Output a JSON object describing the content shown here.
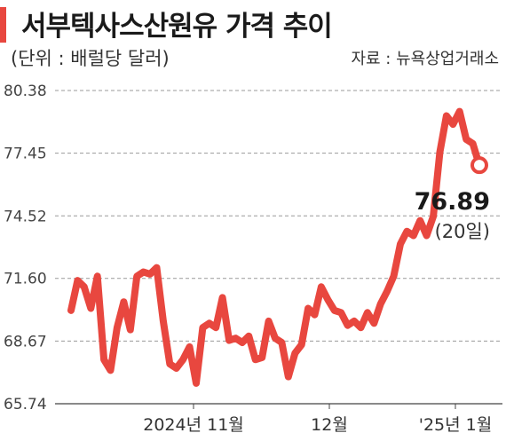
{
  "header": {
    "title": "서부텍사스산원유 가격 추이",
    "subtitle": "(단위 : 배럴당 달러)",
    "source": "자료 : 뉴욕상업거래소"
  },
  "colors": {
    "line": "#e8473f",
    "accent_bar": "#e8473f",
    "grid": "#999999",
    "axis": "#444444"
  },
  "chart_data": {
    "type": "line",
    "title": "서부텍사스산원유 가격 추이",
    "ylabel": "(단위 : 배럴당 달러)",
    "ylim": [
      65.74,
      80.38
    ],
    "y_ticks": [
      "80.38",
      "77.45",
      "74.52",
      "71.60",
      "68.67",
      "65.74"
    ],
    "x_tick_labels": [
      "2024년 11월",
      "12월",
      "'25년 1월"
    ],
    "grid": "horizontal dashed",
    "last_value_label": "76.89",
    "last_value_note": "(20일)",
    "series": [
      {
        "values": [
          70.1,
          71.5,
          71.2,
          70.2,
          71.7,
          67.8,
          67.3,
          69.3,
          70.5,
          69.2,
          71.7,
          71.9,
          71.8,
          72.1,
          69.6,
          67.6,
          67.4,
          67.8,
          68.4,
          66.7,
          69.3,
          69.5,
          69.3,
          70.7,
          68.7,
          68.8,
          68.6,
          68.9,
          67.8,
          67.9,
          69.6,
          68.8,
          68.6,
          67.0,
          68.1,
          68.5,
          70.2,
          69.9,
          71.2,
          70.6,
          70.1,
          70.0,
          69.4,
          69.6,
          69.3,
          70.0,
          69.5,
          70.4,
          71.0,
          71.7,
          73.2,
          73.8,
          73.6,
          74.3,
          73.6,
          74.5,
          77.5,
          79.2,
          78.8,
          79.4,
          78.1,
          77.9,
          76.89
        ]
      }
    ]
  }
}
